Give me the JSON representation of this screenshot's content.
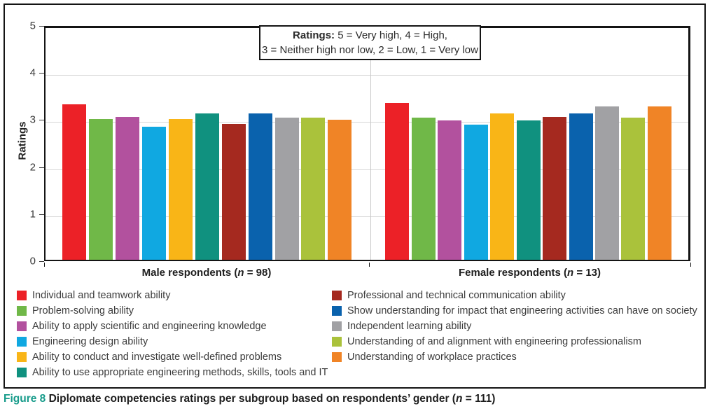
{
  "ratings_note": {
    "bold": "Ratings:",
    "line1_rest": " 5 = Very high, 4 = High,",
    "line2": "3 = Neither high nor low, 2 = Low, 1 = Very low"
  },
  "chart_data": {
    "type": "bar",
    "title": "",
    "ylabel": "Ratings",
    "xlabel": "",
    "ylim": [
      0,
      5
    ],
    "yticks": [
      0,
      1,
      2,
      3,
      4,
      5
    ],
    "grid": true,
    "legend_position": "bottom",
    "categories": [
      {
        "pre": "Male respondents (",
        "n_italic": "n",
        "post": " = 98)"
      },
      {
        "pre": "Female respondents (",
        "n_italic": "n",
        "post": " = 13)"
      }
    ],
    "series": [
      {
        "name": "Individual and teamwork ability",
        "color": "#EC2127",
        "values": [
          3.35,
          3.38
        ]
      },
      {
        "name": "Problem-solving ability",
        "color": "#70B848",
        "values": [
          3.03,
          3.07
        ]
      },
      {
        "name": "Ability to apply scientific and engineering knowledge",
        "color": "#B2519E",
        "values": [
          3.08,
          3.0
        ]
      },
      {
        "name": "Engineering design ability",
        "color": "#10A8E1",
        "values": [
          2.87,
          2.92
        ]
      },
      {
        "name": "Ability to conduct and investigate well-defined problems",
        "color": "#F9B517",
        "values": [
          3.03,
          3.16
        ]
      },
      {
        "name": "Ability to use appropriate engineering methods, skills, tools and IT",
        "color": "#10917F",
        "values": [
          3.16,
          3.0
        ]
      },
      {
        "name": "Professional and technical communication ability",
        "color": "#A5291F",
        "values": [
          2.93,
          3.08
        ]
      },
      {
        "name": "Show understanding for impact that engineering activities can have on society",
        "color": "#0A62AD",
        "values": [
          3.15,
          3.16
        ]
      },
      {
        "name": "Independent learning ability",
        "color": "#A1A1A4",
        "values": [
          3.07,
          3.31
        ]
      },
      {
        "name": "Understanding of and alignment with engineering professionalism",
        "color": "#AAC23B",
        "values": [
          3.07,
          3.07
        ]
      },
      {
        "name": "Understanding of workplace practices",
        "color": "#F08426",
        "values": [
          3.02,
          3.31
        ]
      }
    ],
    "legend_split": [
      6,
      5
    ]
  },
  "caption": {
    "figure_label": "Figure 8",
    "figure_label_color": "#169B8A",
    "text_pre": " Diplomate competencies ratings per subgroup based on respondents’ gender (",
    "n_italic": "n",
    "text_post": " = 111)"
  }
}
